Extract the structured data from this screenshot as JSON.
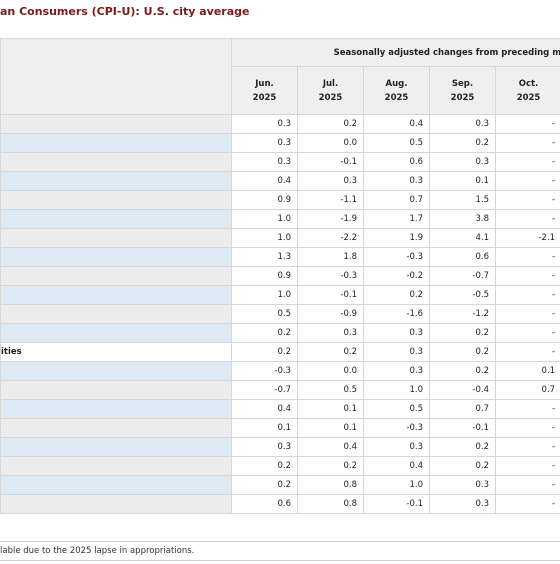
{
  "title": "an Consumers (CPI-U): U.S. city average",
  "header": {
    "group_label": "Seasonally adjusted changes from preceding m",
    "months": [
      {
        "month": "Jun.",
        "year": "2025"
      },
      {
        "month": "Jul.",
        "year": "2025"
      },
      {
        "month": "Aug.",
        "year": "2025"
      },
      {
        "month": "Sep.",
        "year": "2025"
      },
      {
        "month": "Oct.",
        "year": "2025"
      }
    ]
  },
  "rows": [
    {
      "label": "",
      "shade": "grey",
      "values": [
        "0.3",
        "0.2",
        "0.4",
        "0.3",
        "-"
      ]
    },
    {
      "label": "",
      "shade": "blue",
      "values": [
        "0.3",
        "0.0",
        "0.5",
        "0.2",
        "-"
      ]
    },
    {
      "label": "",
      "shade": "grey",
      "values": [
        "0.3",
        "-0.1",
        "0.6",
        "0.3",
        "-"
      ]
    },
    {
      "label": "",
      "shade": "blue",
      "values": [
        "0.4",
        "0.3",
        "0.3",
        "0.1",
        "-"
      ]
    },
    {
      "label": "",
      "shade": "grey",
      "values": [
        "0.9",
        "-1.1",
        "0.7",
        "1.5",
        "-"
      ]
    },
    {
      "label": "",
      "shade": "blue",
      "values": [
        "1.0",
        "-1.9",
        "1.7",
        "3.8",
        "-"
      ]
    },
    {
      "label": "",
      "shade": "grey",
      "values": [
        "1.0",
        "-2.2",
        "1.9",
        "4.1",
        "-2.1"
      ]
    },
    {
      "label": "",
      "shade": "blue",
      "values": [
        "1.3",
        "1.8",
        "-0.3",
        "0.6",
        "-"
      ]
    },
    {
      "label": "",
      "shade": "grey",
      "values": [
        "0.9",
        "-0.3",
        "-0.2",
        "-0.7",
        "-"
      ]
    },
    {
      "label": "",
      "shade": "blue",
      "values": [
        "1.0",
        "-0.1",
        "0.2",
        "-0.5",
        "-"
      ]
    },
    {
      "label": "",
      "shade": "grey",
      "values": [
        "0.5",
        "-0.9",
        "-1.6",
        "-1.2",
        "-"
      ]
    },
    {
      "label": "",
      "shade": "blue",
      "values": [
        "0.2",
        "0.3",
        "0.3",
        "0.2",
        "-"
      ]
    },
    {
      "label": "ities",
      "shade": "white",
      "values": [
        "0.2",
        "0.2",
        "0.3",
        "0.2",
        "-"
      ]
    },
    {
      "label": "",
      "shade": "blue",
      "values": [
        "-0.3",
        "0.0",
        "0.3",
        "0.2",
        "0.1"
      ]
    },
    {
      "label": "",
      "shade": "grey",
      "values": [
        "-0.7",
        "0.5",
        "1.0",
        "-0.4",
        "0.7"
      ]
    },
    {
      "label": "",
      "shade": "blue",
      "values": [
        "0.4",
        "0.1",
        "0.5",
        "0.7",
        "-"
      ]
    },
    {
      "label": "",
      "shade": "grey",
      "values": [
        "0.1",
        "0.1",
        "-0.3",
        "-0.1",
        "-"
      ]
    },
    {
      "label": "",
      "shade": "blue",
      "values": [
        "0.3",
        "0.4",
        "0.3",
        "0.2",
        "-"
      ]
    },
    {
      "label": "",
      "shade": "grey",
      "values": [
        "0.2",
        "0.2",
        "0.4",
        "0.2",
        "-"
      ]
    },
    {
      "label": "",
      "shade": "blue",
      "values": [
        "0.2",
        "0.8",
        "1.0",
        "0.3",
        "-"
      ]
    },
    {
      "label": "",
      "shade": "grey",
      "values": [
        "0.6",
        "0.8",
        "-0.1",
        "0.3",
        "-"
      ]
    }
  ],
  "footnote": "lable due to the 2025 lapse in appropriations.",
  "colors": {
    "title": "#7a1a1a",
    "header_bg": "#efefef",
    "row_grey": "#ececec",
    "row_blue": "#dfeaf7",
    "grid": "#d6d6d6"
  }
}
